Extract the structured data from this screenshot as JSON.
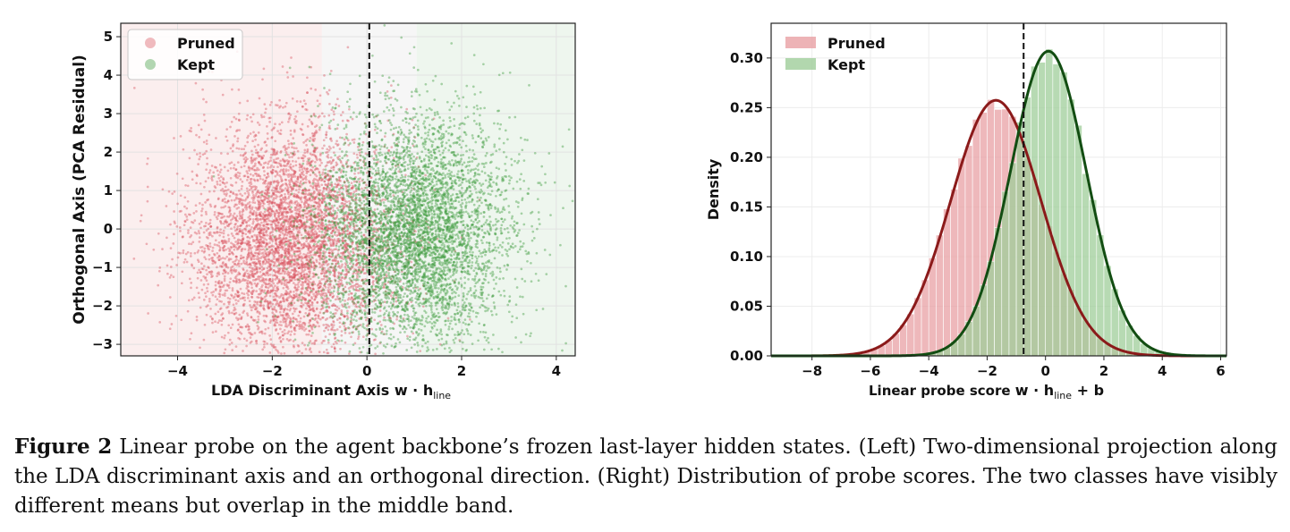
{
  "chart_data": [
    {
      "type": "scatter",
      "xlabel": "LDA Discriminant Axis",
      "xlabel_math": "w · h_line",
      "ylabel": "Orthogonal Axis (PCA Residual)",
      "xlim": [
        -5.2,
        4.4
      ],
      "ylim": [
        -3.3,
        5.35
      ],
      "xticks": [
        -4,
        -2,
        0,
        2,
        4
      ],
      "yticks": [
        -3,
        -2,
        -1,
        0,
        1,
        2,
        3,
        4,
        5
      ],
      "grid": true,
      "legend_position": "top-left",
      "threshold_x": 0.05,
      "background_bands": [
        {
          "from": -5.2,
          "to": -0.95,
          "color": "#fbeeee"
        },
        {
          "from": -0.95,
          "to": 1.05,
          "color": "#f6f6f6"
        },
        {
          "from": 1.05,
          "to": 4.4,
          "color": "#eef6ee"
        }
      ],
      "series": [
        {
          "name": "Pruned",
          "color": "#d9545f",
          "n_points": 5200,
          "mean": [
            -1.6,
            -0.3
          ],
          "std": [
            1.05,
            1.5
          ]
        },
        {
          "name": "Kept",
          "color": "#3f9a3f",
          "n_points": 5200,
          "mean": [
            1.0,
            -0.1
          ],
          "std": [
            1.0,
            1.5
          ]
        }
      ]
    },
    {
      "type": "bar",
      "subtype": "histogram_with_density",
      "xlabel": "Linear probe score",
      "xlabel_math": "w · h_line + b",
      "ylabel": "Density",
      "xlim": [
        -9.4,
        6.2
      ],
      "ylim": [
        0,
        0.335
      ],
      "xticks": [
        -8,
        -6,
        -4,
        -2,
        0,
        2,
        4,
        6
      ],
      "yticks": [
        "0.00",
        "0.05",
        "0.10",
        "0.15",
        "0.20",
        "0.25",
        "0.30"
      ],
      "grid": true,
      "legend_position": "top-left",
      "threshold_x": -0.75,
      "bin_width": 0.25,
      "series": [
        {
          "name": "Pruned",
          "color": "#e8a0a4",
          "line_color": "#8b1a1a",
          "mean": -1.7,
          "std": 1.55,
          "peak_density": 0.258
        },
        {
          "name": "Kept",
          "color": "#9fcd9a",
          "line_color": "#124d12",
          "mean": 0.1,
          "std": 1.3,
          "peak_density": 0.306
        }
      ]
    }
  ],
  "caption": {
    "label": "Figure 2",
    "text": "Linear probe on the agent backbone’s frozen last-layer hidden states. (Left) Two-dimensional projection along the LDA discriminant axis and an orthogonal direction. (Right) Distribution of probe scores. The two classes have visibly different means but overlap in the middle band."
  }
}
